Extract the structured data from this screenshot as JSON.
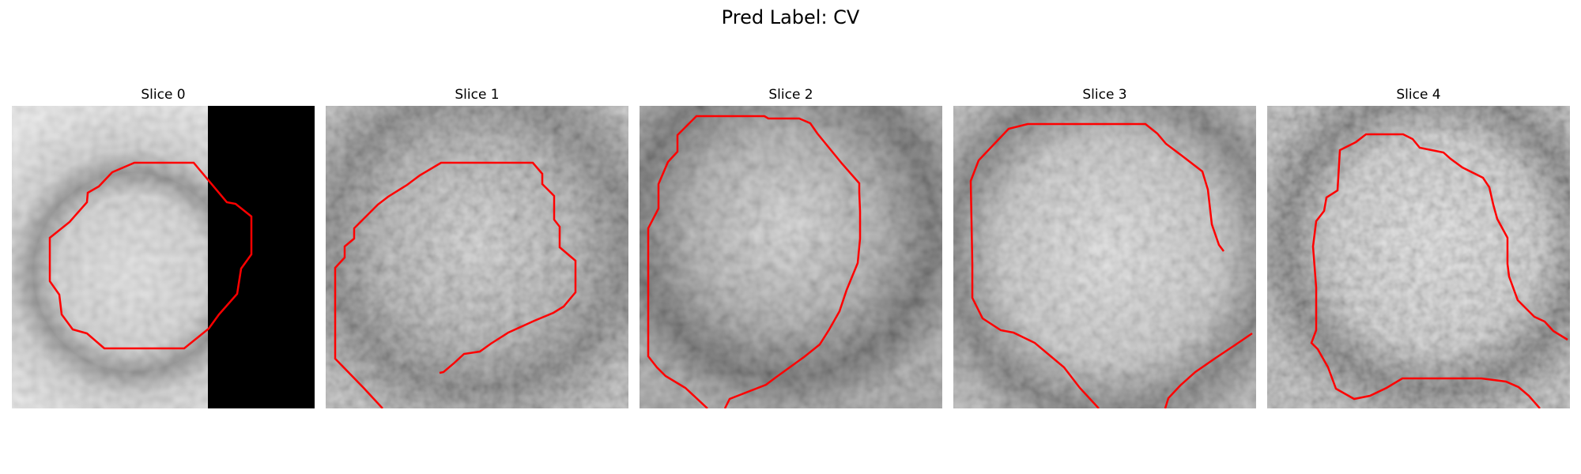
{
  "figure": {
    "title": "Pred Label: CV"
  },
  "slices": [
    {
      "title": "Slice 0",
      "contour_color": "#ff0000"
    },
    {
      "title": "Slice 1",
      "contour_color": "#ff0000"
    },
    {
      "title": "Slice 2",
      "contour_color": "#ff0000"
    },
    {
      "title": "Slice 3",
      "contour_color": "#ff0000"
    },
    {
      "title": "Slice 4",
      "contour_color": "#ff0000"
    }
  ],
  "colormap": "gray"
}
